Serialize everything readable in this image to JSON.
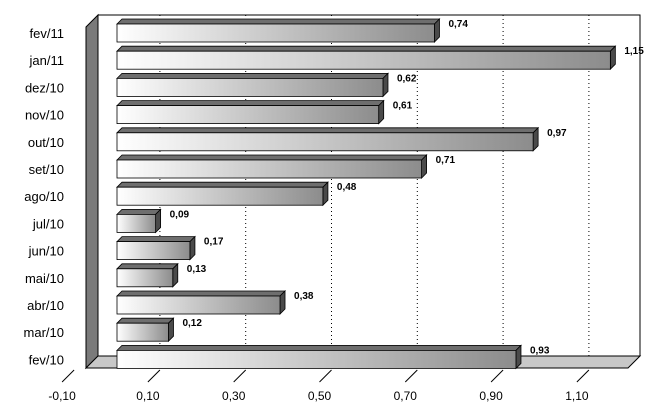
{
  "chart_data": {
    "type": "bar",
    "orientation": "horizontal",
    "categories": [
      "fev/11",
      "jan/11",
      "dez/10",
      "nov/10",
      "out/10",
      "set/10",
      "ago/10",
      "jul/10",
      "jun/10",
      "mai/10",
      "abr/10",
      "mar/10",
      "fev/10"
    ],
    "values": [
      0.74,
      1.15,
      0.62,
      0.61,
      0.97,
      0.71,
      0.48,
      0.09,
      0.17,
      0.13,
      0.38,
      0.12,
      0.93
    ],
    "value_labels": [
      "0,74",
      "1,15",
      "0,62",
      "0,61",
      "0,97",
      "0,71",
      "0,48",
      "0,09",
      "0,17",
      "0,13",
      "0,38",
      "0,12",
      "0,93"
    ],
    "x_ticks": [
      -0.1,
      0.1,
      0.3,
      0.5,
      0.7,
      0.9,
      1.1
    ],
    "x_tick_labels": [
      "-0,10",
      "0,10",
      "0,30",
      "0,50",
      "0,70",
      "0,90",
      "1,10"
    ],
    "xlim": [
      -0.1,
      1.2
    ],
    "grid": "vertical-dotted",
    "legend": "none",
    "title": "",
    "xlabel": "",
    "ylabel": "",
    "colors": {
      "bar_light": "#ffffff",
      "bar_dark": "#8c8c8c",
      "bar_top": "#6e6e6e",
      "bar_side": "#4a4a4a",
      "wall_left": "#7a7a7a",
      "floor": "#c8c8c8",
      "grid": "#000000"
    }
  }
}
